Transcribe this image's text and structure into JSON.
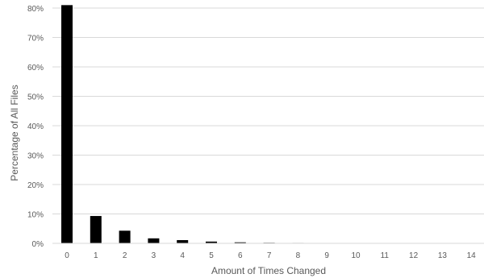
{
  "chart_data": {
    "type": "bar",
    "title": "",
    "xlabel": "Amount of Times Changed",
    "ylabel": "Percentage of All Files",
    "categories": [
      "0",
      "1",
      "2",
      "3",
      "4",
      "5",
      "6",
      "7",
      "8",
      "9",
      "10",
      "11",
      "12",
      "13",
      "14"
    ],
    "values": [
      81.0,
      9.3,
      4.3,
      1.7,
      1.1,
      0.6,
      0.35,
      0.2,
      0.15,
      0.12,
      0.05,
      0.03,
      0.02,
      0.01,
      0.01
    ],
    "ylim": [
      0,
      80
    ],
    "yticks": [
      "0%",
      "10%",
      "20%",
      "30%",
      "40%",
      "50%",
      "60%",
      "70%",
      "80%"
    ],
    "grid": true,
    "bar_color": "#000000",
    "grid_color": "#d9d9d9"
  }
}
